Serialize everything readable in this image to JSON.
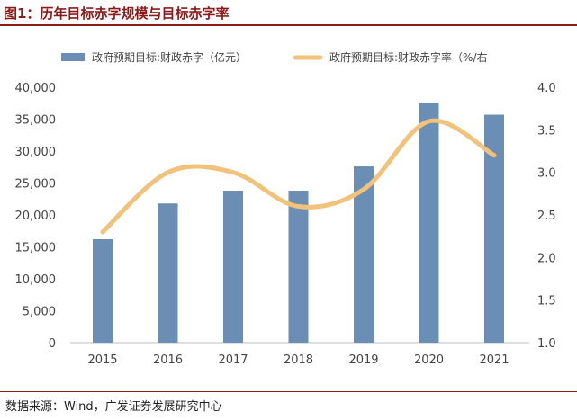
{
  "figure": {
    "title": "图1：历年目标赤字规模与目标赤字率",
    "source": "数据来源：Wind，广发证券发展研究中心"
  },
  "colors": {
    "bar": "#6b8fb4",
    "line": "#f2c27a",
    "axis": "#bfbfbf",
    "text": "#444444",
    "accent": "#8b1a1a"
  },
  "chart_data": {
    "type": "bar+line",
    "categories": [
      "2015",
      "2016",
      "2017",
      "2018",
      "2019",
      "2020",
      "2021"
    ],
    "series": [
      {
        "name": "政府预期目标:财政赤字（亿元）",
        "type": "bar",
        "axis": "left",
        "values": [
          16200,
          21800,
          23800,
          23800,
          27600,
          37600,
          35700
        ]
      },
      {
        "name": "政府预期目标:财政赤字率（%/右",
        "type": "line",
        "axis": "right",
        "smooth": true,
        "values": [
          2.3,
          3.0,
          3.0,
          2.6,
          2.8,
          3.6,
          3.2
        ]
      }
    ],
    "left_axis": {
      "min": 0,
      "max": 40000,
      "ticks": [
        "0",
        "5,000",
        "10,000",
        "15,000",
        "20,000",
        "25,000",
        "30,000",
        "35,000",
        "40,000"
      ]
    },
    "right_axis": {
      "min": 1.0,
      "max": 4.0,
      "ticks": [
        "1.0",
        "1.5",
        "2.0",
        "2.5",
        "3.0",
        "3.5",
        "4.0"
      ]
    },
    "legend_position": "top"
  }
}
